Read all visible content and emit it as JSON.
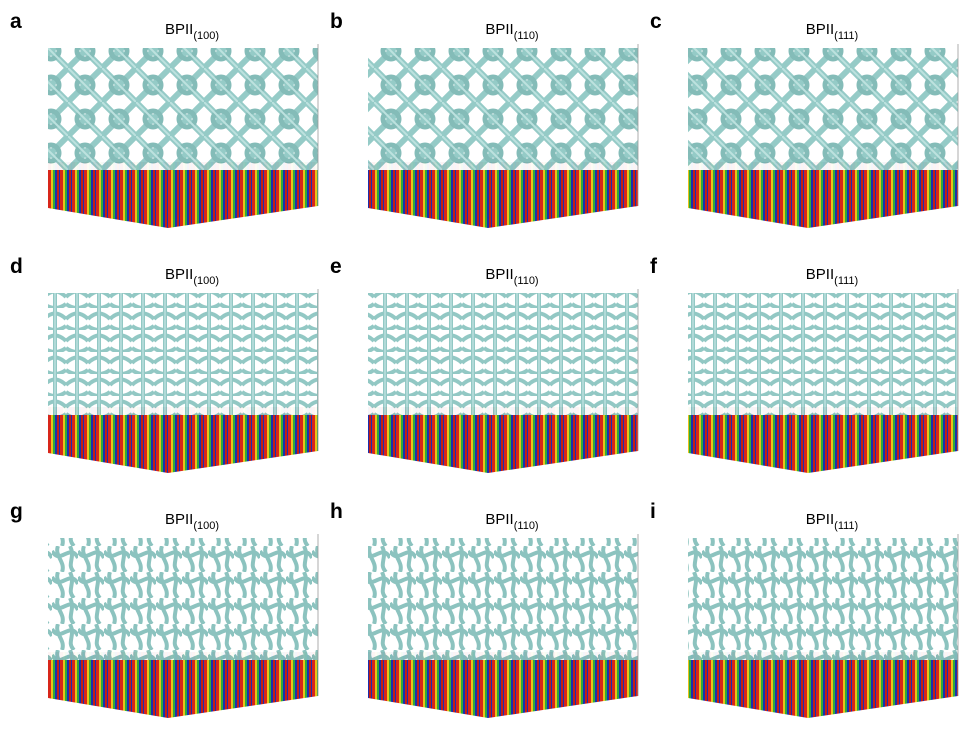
{
  "panels": [
    {
      "letter": "a",
      "title": "BPII",
      "subscript": "(100)"
    },
    {
      "letter": "b",
      "title": "BPII",
      "subscript": "(110)"
    },
    {
      "letter": "c",
      "title": "BPII",
      "subscript": "(111)"
    },
    {
      "letter": "d",
      "title": "BPII",
      "subscript": "(100)"
    },
    {
      "letter": "e",
      "title": "BPII",
      "subscript": "(110)"
    },
    {
      "letter": "f",
      "title": "BPII",
      "subscript": "(111)"
    },
    {
      "letter": "g",
      "title": "BPII",
      "subscript": "(100)"
    },
    {
      "letter": "h",
      "title": "BPII",
      "subscript": "(110)"
    },
    {
      "letter": "i",
      "title": "BPII",
      "subscript": "(111)"
    }
  ]
}
